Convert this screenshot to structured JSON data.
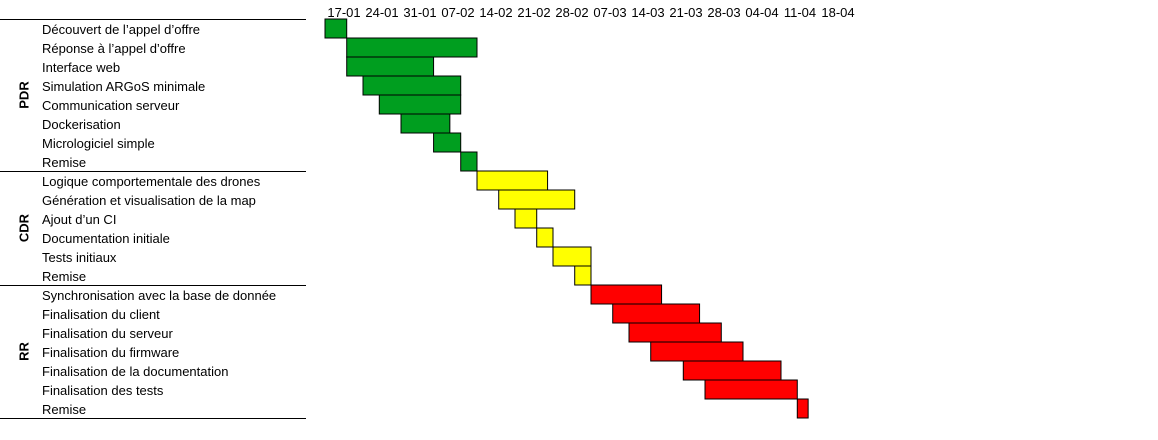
{
  "chart_data": {
    "type": "gantt",
    "week_labels": [
      "17-01",
      "24-01",
      "31-01",
      "07-02",
      "14-02",
      "21-02",
      "28-02",
      "07-03",
      "14-03",
      "21-03",
      "28-03",
      "04-04",
      "11-04",
      "18-04"
    ],
    "groups": [
      {
        "name": "PDR",
        "color": "#009e1f",
        "tasks": [
          {
            "label": "Découvert de l’appel d’offre",
            "start": "17-01",
            "end": "21-01"
          },
          {
            "label": "Réponse à l’appel d’offre",
            "start": "21-01",
            "end": "14-02"
          },
          {
            "label": "Interface web",
            "start": "21-01",
            "end": "06-02"
          },
          {
            "label": "Simulation ARGoS minimale",
            "start": "24-01",
            "end": "11-02"
          },
          {
            "label": "Communication serveur",
            "start": "27-01",
            "end": "11-02"
          },
          {
            "label": "Dockerisation",
            "start": "31-01",
            "end": "09-02"
          },
          {
            "label": "Micrologiciel simple",
            "start": "06-02",
            "end": "11-02"
          },
          {
            "label": "Remise",
            "start": "11-02",
            "end": "14-02"
          }
        ]
      },
      {
        "name": "CDR",
        "color": "#ffff00",
        "tasks": [
          {
            "label": "Logique comportementale des drones",
            "start": "14-02",
            "end": "27-02"
          },
          {
            "label": "Génération et visualisation de la map",
            "start": "18-02",
            "end": "04-03"
          },
          {
            "label": "Ajout d’un CI",
            "start": "21-02",
            "end": "25-02"
          },
          {
            "label": "Documentation initiale",
            "start": "25-02",
            "end": "28-02"
          },
          {
            "label": "Tests initiaux",
            "start": "28-02",
            "end": "07-03"
          },
          {
            "label": "Remise",
            "start": "04-03",
            "end": "07-03"
          }
        ]
      },
      {
        "name": "RR",
        "color": "#ff0000",
        "tasks": [
          {
            "label": "Synchronisation avec la base de donnée",
            "start": "07-03",
            "end": "20-03"
          },
          {
            "label": "Finalisation du client",
            "start": "11-03",
            "end": "27-03"
          },
          {
            "label": "Finalisation du serveur",
            "start": "14-03",
            "end": "31-03"
          },
          {
            "label": "Finalisation du firmware",
            "start": "18-03",
            "end": "04-04"
          },
          {
            "label": "Finalisation de la documentation",
            "start": "24-03",
            "end": "11-04"
          },
          {
            "label": "Finalisation des tests",
            "start": "28-03",
            "end": "14-04"
          },
          {
            "label": "Remise",
            "start": "14-04",
            "end": "16-04"
          }
        ]
      }
    ]
  }
}
